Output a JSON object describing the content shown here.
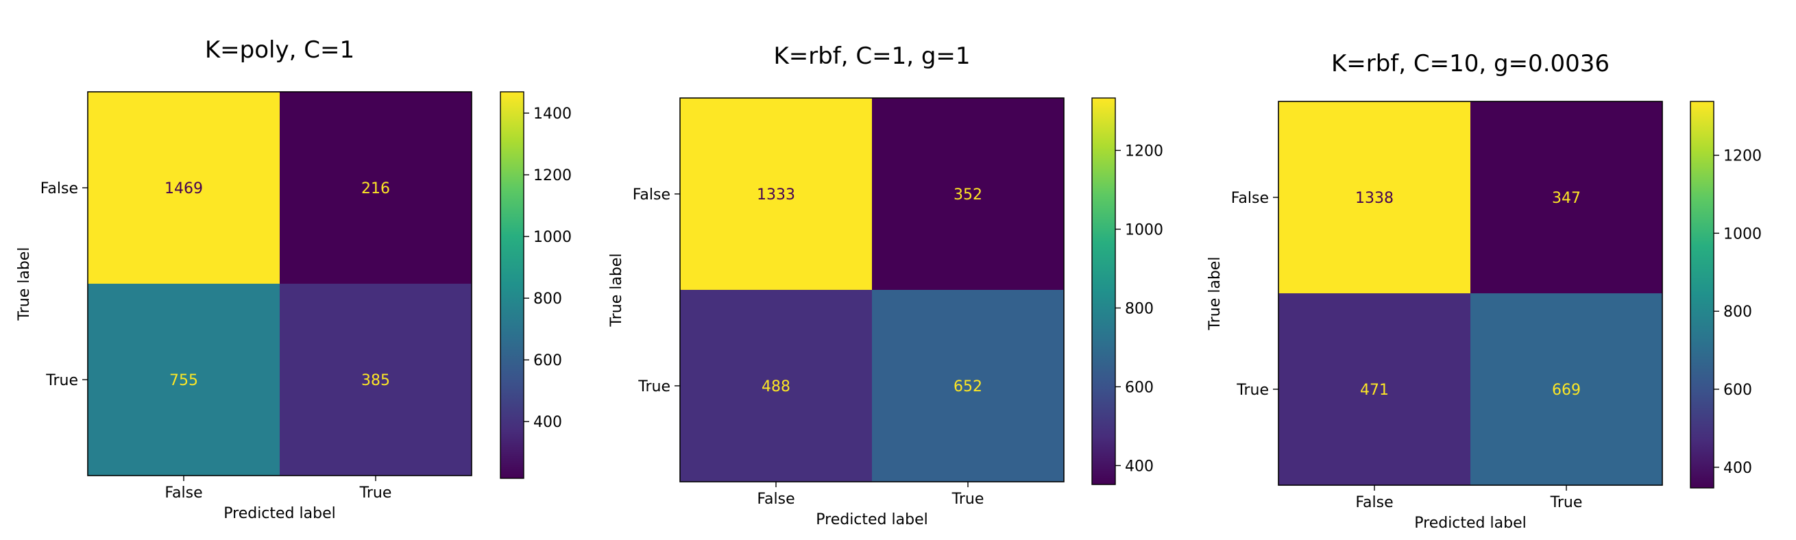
{
  "chart_data": [
    {
      "type": "heatmap",
      "title": "K=poly, C=1",
      "xlabel": "Predicted label",
      "ylabel": "True label",
      "x_categories": [
        "False",
        "True"
      ],
      "y_categories": [
        "False",
        "True"
      ],
      "matrix": [
        [
          1469,
          216
        ],
        [
          755,
          385
        ]
      ],
      "cell_labels": [
        [
          "1469",
          "216"
        ],
        [
          "755",
          "385"
        ]
      ],
      "colormap": "viridis",
      "colorbar": {
        "range": [
          216,
          1469
        ],
        "ticks": [
          400,
          600,
          800,
          1000,
          1200,
          1400
        ],
        "tick_labels": [
          "400",
          "600",
          "800",
          "1000",
          "1200",
          "1400"
        ]
      }
    },
    {
      "type": "heatmap",
      "title": "K=rbf, C=1, g=1",
      "xlabel": "Predicted label",
      "ylabel": "True label",
      "x_categories": [
        "False",
        "True"
      ],
      "y_categories": [
        "False",
        "True"
      ],
      "matrix": [
        [
          1333,
          352
        ],
        [
          488,
          652
        ]
      ],
      "cell_labels": [
        [
          "1333",
          "352"
        ],
        [
          "488",
          "652"
        ]
      ],
      "colormap": "viridis",
      "colorbar": {
        "range": [
          352,
          1333
        ],
        "ticks": [
          400,
          600,
          800,
          1000,
          1200
        ],
        "tick_labels": [
          "400",
          "600",
          "800",
          "1000",
          "1200"
        ]
      }
    },
    {
      "type": "heatmap",
      "title": "K=rbf, C=10,  g=0.0036",
      "xlabel": "Predicted label",
      "ylabel": "True label",
      "x_categories": [
        "False",
        "True"
      ],
      "y_categories": [
        "False",
        "True"
      ],
      "matrix": [
        [
          1338,
          347
        ],
        [
          471,
          669
        ]
      ],
      "cell_labels": [
        [
          "1338",
          "347"
        ],
        [
          "471",
          "669"
        ]
      ],
      "colormap": "viridis",
      "colorbar": {
        "range": [
          347,
          1338
        ],
        "ticks": [
          400,
          600,
          800,
          1000,
          1200
        ],
        "tick_labels": [
          "400",
          "600",
          "800",
          "1000",
          "1200"
        ]
      }
    }
  ]
}
